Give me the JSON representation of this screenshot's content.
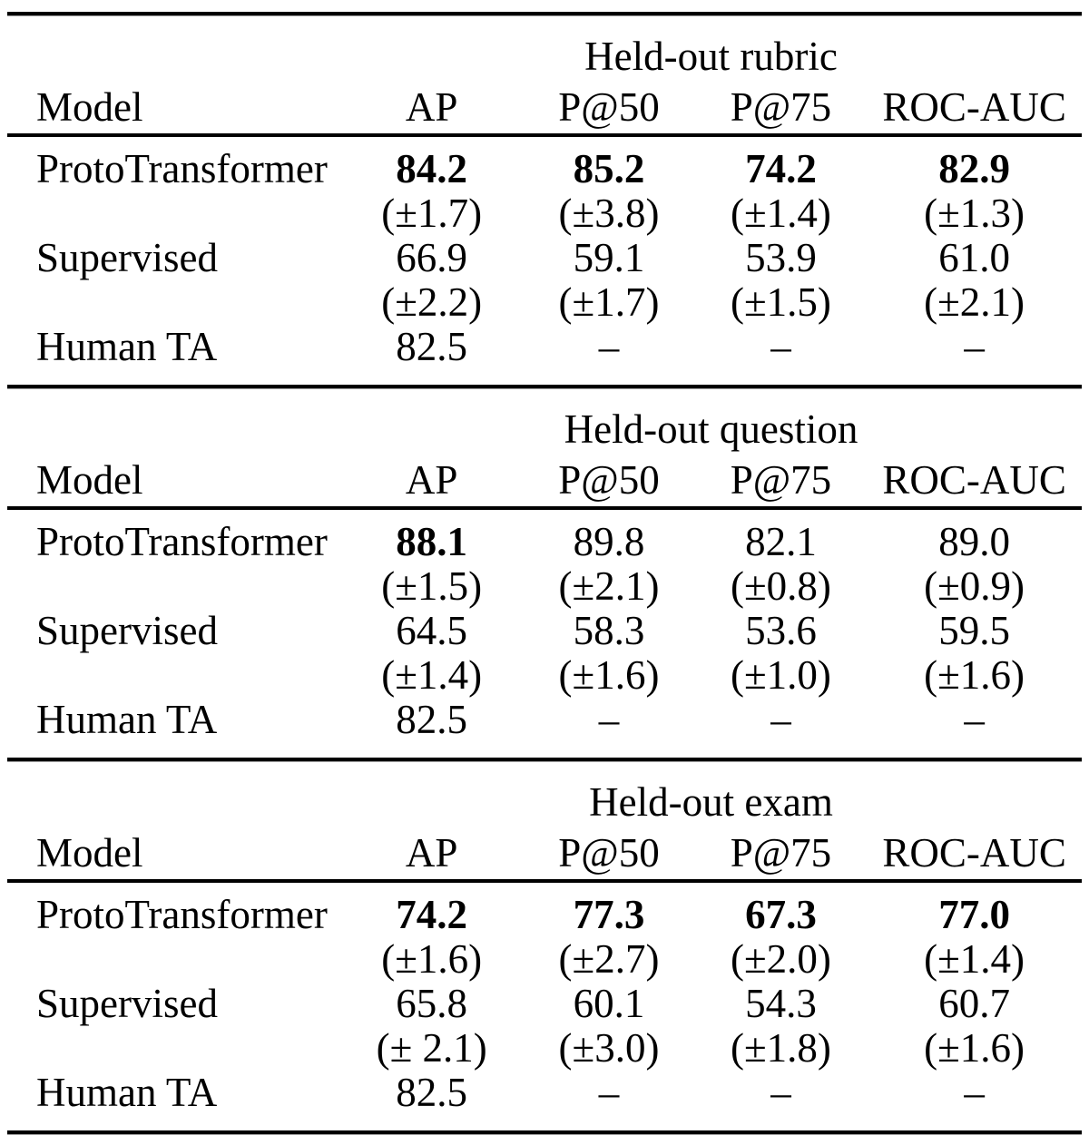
{
  "tables": [
    {
      "spanner": "Held-out rubric",
      "columns": [
        "Model",
        "AP",
        "P@50",
        "P@75",
        "ROC-AUC"
      ],
      "lines": [
        {
          "label": "ProtoTransformer",
          "cells": [
            "84.2",
            "85.2",
            "74.2",
            "82.9"
          ]
        },
        {
          "label": "",
          "cells": [
            "(±1.7)",
            "(±3.8)",
            "(±1.4)",
            "(±1.3)"
          ]
        },
        {
          "label": "Supervised",
          "cells": [
            "66.9",
            "59.1",
            "53.9",
            "61.0"
          ]
        },
        {
          "label": "",
          "cells": [
            "(±2.2)",
            "(±1.7)",
            "(±1.5)",
            "(±2.1)"
          ]
        },
        {
          "label": "Human TA",
          "cells": [
            "82.5",
            "–",
            "–",
            "–"
          ]
        }
      ]
    },
    {
      "spanner": "Held-out question",
      "columns": [
        "Model",
        "AP",
        "P@50",
        "P@75",
        "ROC-AUC"
      ],
      "lines": [
        {
          "label": "ProtoTransformer",
          "cells": [
            "88.1",
            "89.8",
            "82.1",
            "89.0"
          ]
        },
        {
          "label": "",
          "cells": [
            "(±1.5)",
            "(±2.1)",
            "(±0.8)",
            "(±0.9)"
          ]
        },
        {
          "label": "Supervised",
          "cells": [
            "64.5",
            "58.3",
            "53.6",
            "59.5"
          ]
        },
        {
          "label": "",
          "cells": [
            "(±1.4)",
            "(±1.6)",
            "(±1.0)",
            "(±1.6)"
          ]
        },
        {
          "label": "Human TA",
          "cells": [
            "82.5",
            "–",
            "–",
            "–"
          ]
        }
      ]
    },
    {
      "spanner": "Held-out exam",
      "columns": [
        "Model",
        "AP",
        "P@50",
        "P@75",
        "ROC-AUC"
      ],
      "lines": [
        {
          "label": "ProtoTransformer",
          "cells": [
            "74.2",
            "77.3",
            "67.3",
            "77.0"
          ]
        },
        {
          "label": "",
          "cells": [
            "(±1.6)",
            "(±2.7)",
            "(±2.0)",
            "(±1.4)"
          ]
        },
        {
          "label": "Supervised",
          "cells": [
            "65.8",
            "60.1",
            "54.3",
            "60.7"
          ]
        },
        {
          "label": "",
          "cells": [
            "(± 2.1)",
            "(±3.0)",
            "(±1.8)",
            "(±1.6)"
          ]
        },
        {
          "label": "Human TA",
          "cells": [
            "82.5",
            "–",
            "–",
            "–"
          ]
        }
      ]
    }
  ]
}
